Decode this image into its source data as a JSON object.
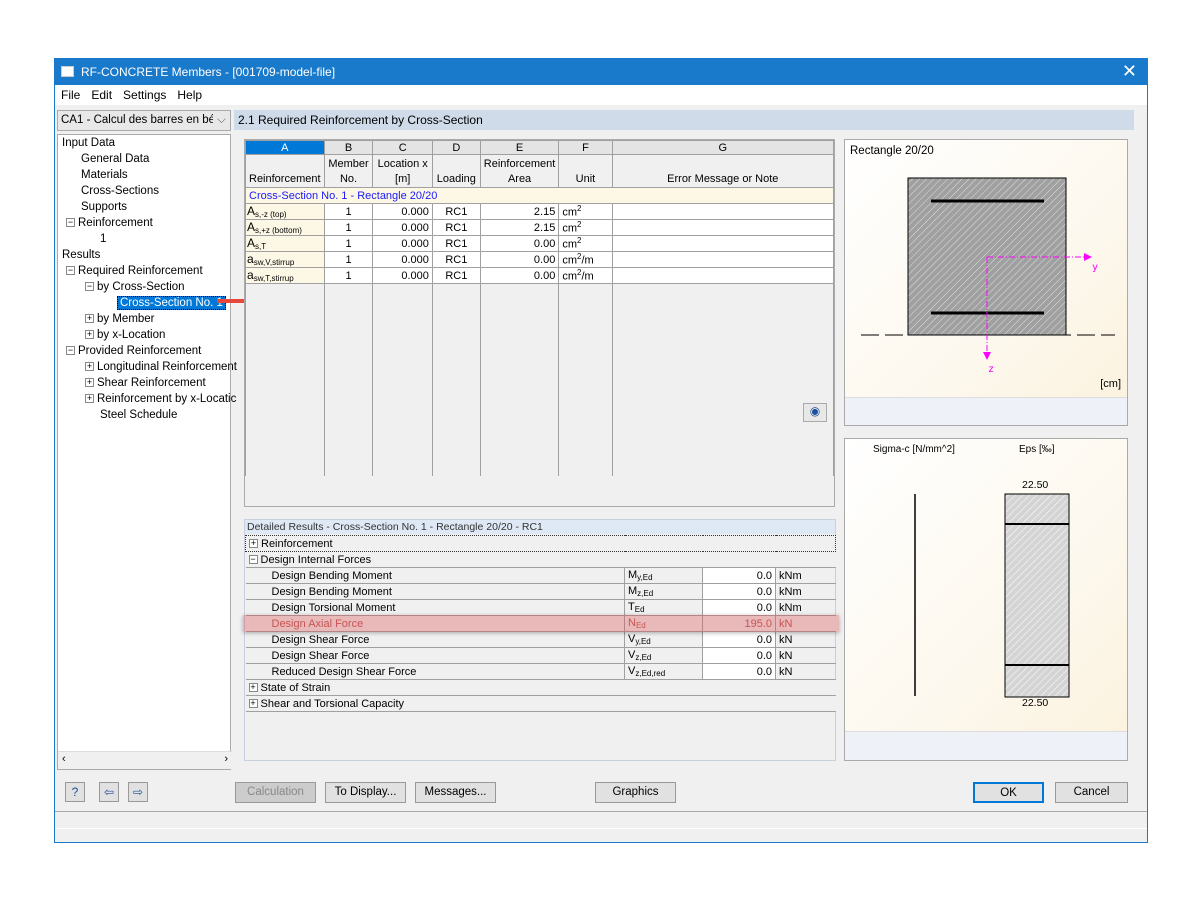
{
  "window": {
    "title": "RF-CONCRETE Members - [001709-model-file]",
    "close": "✕"
  },
  "menu": [
    "File",
    "Edit",
    "Settings",
    "Help"
  ],
  "case_select": "CA1 - Calcul des barres en bétc",
  "tree": {
    "input": "Input Data",
    "general": "General Data",
    "materials": "Materials",
    "cross_sections": "Cross-Sections",
    "supports": "Supports",
    "reinforcement": "Reinforcement",
    "reinf_1": "1",
    "results": "Results",
    "required": "Required Reinforcement",
    "by_cs": "by Cross-Section",
    "cs1": "Cross-Section No. 1",
    "by_member": "by Member",
    "by_x": "by x-Location",
    "provided": "Provided Reinforcement",
    "longitudinal": "Longitudinal Reinforcement",
    "shear": "Shear Reinforcement",
    "by_x_loc": "Reinforcement by x-Locatic",
    "steel": "Steel Schedule"
  },
  "panel_title": "2.1 Required Reinforcement by Cross-Section",
  "table": {
    "letters": [
      "A",
      "B",
      "C",
      "D",
      "E",
      "F",
      "G"
    ],
    "headers": [
      "Reinforcement",
      "Member No.",
      "Location x [m]",
      "Loading",
      "Reinforcement Area",
      "Unit",
      "Error Message or Note"
    ],
    "group": "Cross-Section No. 1 - Rectangle 20/20",
    "rows": [
      {
        "sym": "A",
        "sub": "s,-z (top)",
        "member": "1",
        "x": "0.000",
        "load": "RC1",
        "area": "2.15",
        "unit": "cm",
        "exp": "2",
        "unit2": ""
      },
      {
        "sym": "A",
        "sub": "s,+z (bottom)",
        "member": "1",
        "x": "0.000",
        "load": "RC1",
        "area": "2.15",
        "unit": "cm",
        "exp": "2",
        "unit2": ""
      },
      {
        "sym": "A",
        "sub": "s,T",
        "member": "1",
        "x": "0.000",
        "load": "RC1",
        "area": "0.00",
        "unit": "cm",
        "exp": "2",
        "unit2": ""
      },
      {
        "sym": "a",
        "sub": "sw,V,stirrup",
        "member": "1",
        "x": "0.000",
        "load": "RC1",
        "area": "0.00",
        "unit": "cm",
        "exp": "2",
        "unit2": "/m"
      },
      {
        "sym": "a",
        "sub": "sw,T,stirrup",
        "member": "1",
        "x": "0.000",
        "load": "RC1",
        "area": "0.00",
        "unit": "cm",
        "exp": "2",
        "unit2": "/m"
      }
    ]
  },
  "details": {
    "title": "Detailed Results  -  Cross-Section No. 1 - Rectangle 20/20  -  RC1",
    "sections": {
      "reinforcement": "Reinforcement",
      "internal": "Design Internal Forces",
      "strain": "State of Strain",
      "capacity": "Shear and Torsional Capacity"
    },
    "rows": [
      {
        "label": "Design Bending Moment",
        "sym": "M",
        "sub": "y,Ed",
        "value": "0.0",
        "unit": "kNm"
      },
      {
        "label": "Design Bending Moment",
        "sym": "M",
        "sub": "z,Ed",
        "value": "0.0",
        "unit": "kNm"
      },
      {
        "label": "Design Torsional Moment",
        "sym": "T",
        "sub": "Ed",
        "value": "0.0",
        "unit": "kNm"
      },
      {
        "label": "Design Axial Force",
        "sym": "N",
        "sub": "Ed",
        "value": "195.0",
        "unit": "kN"
      },
      {
        "label": "Design Shear Force",
        "sym": "V",
        "sub": "y,Ed",
        "value": "0.0",
        "unit": "kN"
      },
      {
        "label": "Design Shear Force",
        "sym": "V",
        "sub": "z,Ed",
        "value": "0.0",
        "unit": "kN"
      },
      {
        "label": "Reduced Design Shear Force",
        "sym": "V",
        "sub": "z,Ed,red",
        "value": "0.0",
        "unit": "kN"
      }
    ],
    "highlight_color": "#e06060"
  },
  "graphic1": {
    "title": "Rectangle 20/20",
    "axis_y": "y",
    "axis_z": "z",
    "unit": "[cm]",
    "axis_color": "#ff00ff"
  },
  "graphic2": {
    "sigma_label": "Sigma-c [N/mm^2]",
    "eps_label": "Eps [‰]",
    "eps_top": "22.50",
    "eps_bottom": "22.50"
  },
  "buttons": {
    "calculation": "Calculation",
    "to_display": "To Display...",
    "messages": "Messages...",
    "graphics": "Graphics",
    "ok": "OK",
    "cancel": "Cancel"
  },
  "icons": {
    "help": "help-icon",
    "prev": "previous-window-icon",
    "next": "next-window-icon",
    "eye": "eye-icon"
  }
}
